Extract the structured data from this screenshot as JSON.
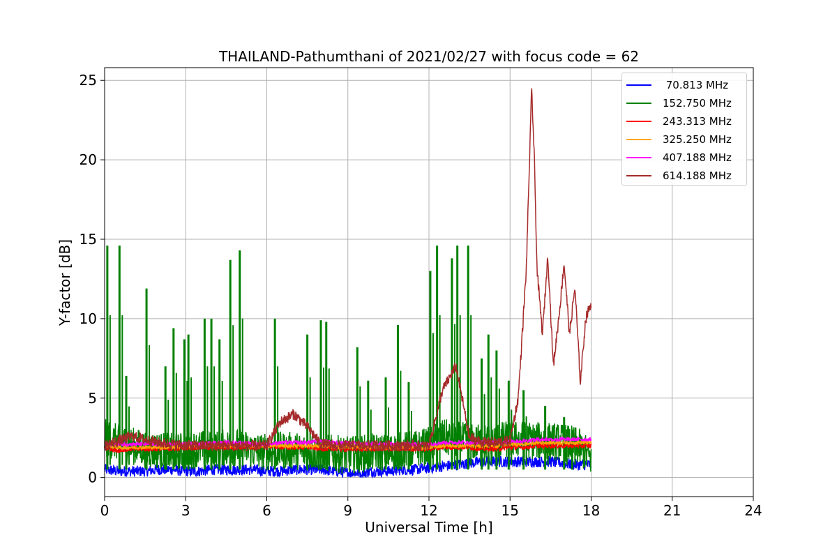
{
  "chart_data": {
    "type": "line",
    "title": "THAILAND-Pathumthani of 2021/02/27 with focus code = 62",
    "xlabel": "Universal Time [h]",
    "ylabel": "Y-factor [dB]",
    "xlim": [
      0,
      24
    ],
    "ylim": [
      -1.2,
      25.8
    ],
    "xticks": [
      0,
      3,
      6,
      9,
      12,
      15,
      18,
      21,
      24
    ],
    "yticks": [
      0,
      5,
      10,
      15,
      20,
      25
    ],
    "grid": true,
    "legend_position": "top-right",
    "series": [
      {
        "name": " 70.813 MHz",
        "color": "#0000ff",
        "x": [
          0,
          0.5,
          1,
          1.5,
          2,
          2.5,
          3,
          3.5,
          4,
          4.5,
          5,
          5.5,
          6,
          6.5,
          7,
          7.5,
          8,
          8.5,
          9,
          9.5,
          10,
          10.5,
          11,
          11.5,
          12,
          12.5,
          13,
          13.5,
          14,
          14.5,
          15,
          15.5,
          16,
          16.5,
          17,
          17.5,
          18
        ],
        "y": [
          0.5,
          0.4,
          0.4,
          0.4,
          0.5,
          0.5,
          0.4,
          0.4,
          0.5,
          0.5,
          0.5,
          0.5,
          0.4,
          0.4,
          0.5,
          0.5,
          0.5,
          0.4,
          0.3,
          0.3,
          0.4,
          0.4,
          0.5,
          0.5,
          0.6,
          0.7,
          0.8,
          0.9,
          1.0,
          1.0,
          1.0,
          1.0,
          1.0,
          1.0,
          0.9,
          0.8,
          0.8
        ]
      },
      {
        "name": "152.750 MHz",
        "color": "#008000",
        "x": [
          0,
          0.5,
          1,
          1.5,
          2,
          2.5,
          3,
          3.5,
          4,
          4.5,
          5,
          5.5,
          6,
          6.5,
          7,
          7.5,
          8,
          8.5,
          9,
          9.5,
          10,
          10.5,
          11,
          11.5,
          12,
          12.5,
          13,
          13.5,
          14,
          14.5,
          15,
          15.5,
          16,
          16.5,
          17,
          17.5,
          18
        ],
        "y": [
          2.5,
          2.2,
          2.0,
          1.8,
          1.7,
          1.6,
          1.7,
          1.8,
          1.8,
          1.9,
          1.9,
          1.7,
          1.6,
          1.7,
          1.7,
          1.6,
          1.6,
          1.5,
          1.4,
          1.5,
          1.6,
          1.6,
          1.7,
          1.8,
          2.0,
          2.5,
          2.4,
          2.2,
          2.2,
          2.3,
          2.4,
          2.4,
          2.3,
          2.3,
          2.2,
          2.0,
          1.2
        ],
        "peaks": [
          {
            "x": 0.1,
            "y": 14.6
          },
          {
            "x": 0.55,
            "y": 14.6
          },
          {
            "x": 0.8,
            "y": 6.4
          },
          {
            "x": 1.55,
            "y": 11.9
          },
          {
            "x": 2.25,
            "y": 7.0
          },
          {
            "x": 2.55,
            "y": 9.4
          },
          {
            "x": 2.95,
            "y": 8.7
          },
          {
            "x": 3.1,
            "y": 9.0
          },
          {
            "x": 3.7,
            "y": 10.0
          },
          {
            "x": 3.95,
            "y": 10.0
          },
          {
            "x": 4.25,
            "y": 8.7
          },
          {
            "x": 4.65,
            "y": 13.7
          },
          {
            "x": 5.0,
            "y": 14.3
          },
          {
            "x": 6.3,
            "y": 10.0
          },
          {
            "x": 7.5,
            "y": 9.0
          },
          {
            "x": 8.0,
            "y": 9.9
          },
          {
            "x": 8.2,
            "y": 9.8
          },
          {
            "x": 9.35,
            "y": 8.2
          },
          {
            "x": 9.75,
            "y": 6.1
          },
          {
            "x": 10.4,
            "y": 6.3
          },
          {
            "x": 10.85,
            "y": 9.6
          },
          {
            "x": 11.25,
            "y": 6.0
          },
          {
            "x": 12.05,
            "y": 13.0
          },
          {
            "x": 12.3,
            "y": 14.6
          },
          {
            "x": 12.85,
            "y": 13.8
          },
          {
            "x": 13.05,
            "y": 14.6
          },
          {
            "x": 13.45,
            "y": 14.6
          },
          {
            "x": 13.95,
            "y": 7.5
          },
          {
            "x": 14.2,
            "y": 9.0
          },
          {
            "x": 14.5,
            "y": 8.0
          },
          {
            "x": 14.95,
            "y": 6.1
          },
          {
            "x": 15.5,
            "y": 5.5
          },
          {
            "x": 16.3,
            "y": 4.5
          },
          {
            "x": 17.0,
            "y": 3.8
          },
          {
            "x": 17.3,
            "y": 3.0
          }
        ]
      },
      {
        "name": "243.313 MHz",
        "color": "#ff0000",
        "x": [
          0,
          0.5,
          1,
          1.5,
          2,
          2.5,
          3,
          3.5,
          4,
          4.5,
          5,
          5.5,
          6,
          6.5,
          7,
          7.5,
          8,
          8.5,
          9,
          9.5,
          10,
          10.5,
          11,
          11.5,
          12,
          12.5,
          13,
          13.5,
          14,
          14.5,
          15,
          15.5,
          16,
          16.5,
          17,
          17.5,
          18
        ],
        "y": [
          1.9,
          1.7,
          1.8,
          1.8,
          1.8,
          1.8,
          1.9,
          1.9,
          1.9,
          1.9,
          1.9,
          1.9,
          2.0,
          1.9,
          1.9,
          1.9,
          1.8,
          1.8,
          1.8,
          1.8,
          1.8,
          1.8,
          1.8,
          1.8,
          1.8,
          1.9,
          1.9,
          1.9,
          1.8,
          1.8,
          1.9,
          1.9,
          2.0,
          2.0,
          2.0,
          2.0,
          2.0
        ]
      },
      {
        "name": "325.250 MHz",
        "color": "#ffa500",
        "x": [
          0,
          0.5,
          1,
          1.5,
          2,
          2.5,
          3,
          3.5,
          4,
          4.5,
          5,
          5.5,
          6,
          6.5,
          7,
          7.5,
          8,
          8.5,
          9,
          9.5,
          10,
          10.5,
          11,
          11.5,
          12,
          12.5,
          13,
          13.5,
          14,
          14.5,
          15,
          15.5,
          16,
          16.5,
          17,
          17.5,
          18
        ],
        "y": [
          2.0,
          1.9,
          1.9,
          1.9,
          1.9,
          1.9,
          2.0,
          2.0,
          2.0,
          2.0,
          2.0,
          2.0,
          2.0,
          2.0,
          2.0,
          2.0,
          2.0,
          1.9,
          1.9,
          1.9,
          1.9,
          1.9,
          1.9,
          1.9,
          1.9,
          2.0,
          2.0,
          2.0,
          2.0,
          2.0,
          2.1,
          2.1,
          2.2,
          2.2,
          2.2,
          2.2,
          2.2
        ]
      },
      {
        "name": "407.188 MHz",
        "color": "#ff00ff",
        "x": [
          0,
          0.5,
          1,
          1.5,
          2,
          2.5,
          3,
          3.5,
          4,
          4.5,
          5,
          5.5,
          6,
          6.5,
          7,
          7.5,
          8,
          8.5,
          9,
          9.5,
          10,
          10.5,
          11,
          11.5,
          12,
          12.5,
          13,
          13.5,
          14,
          14.5,
          15,
          15.5,
          16,
          16.5,
          17,
          17.5,
          18
        ],
        "y": [
          2.1,
          2.1,
          2.1,
          2.1,
          2.1,
          2.1,
          2.1,
          2.1,
          2.2,
          2.2,
          2.2,
          2.1,
          2.1,
          2.2,
          2.2,
          2.2,
          2.3,
          2.2,
          2.2,
          2.1,
          2.1,
          2.1,
          2.1,
          2.1,
          2.1,
          2.2,
          2.2,
          2.2,
          2.2,
          2.2,
          2.3,
          2.3,
          2.4,
          2.4,
          2.4,
          2.4,
          2.4
        ]
      },
      {
        "name": "614.188 MHz",
        "color": "#a52a2a",
        "x": [
          0,
          0.5,
          1,
          1.5,
          2,
          2.5,
          3,
          3.5,
          4,
          4.5,
          5,
          5.5,
          6,
          6.5,
          7,
          7.5,
          8,
          8.5,
          9,
          9.5,
          10,
          10.5,
          11,
          11.5,
          12,
          12.5,
          13,
          13.5,
          14,
          14.5,
          15,
          15.3,
          15.6,
          15.8,
          15.9,
          16.0,
          16.2,
          16.4,
          16.6,
          16.8,
          17.0,
          17.2,
          17.4,
          17.6,
          17.8,
          18
        ],
        "y": [
          2.0,
          2.3,
          2.6,
          2.4,
          2.2,
          2.1,
          2.0,
          2.0,
          2.0,
          2.0,
          2.0,
          2.0,
          2.0,
          3.5,
          4.0,
          3.2,
          2.1,
          2.0,
          2.0,
          2.0,
          2.0,
          2.0,
          2.0,
          2.0,
          2.0,
          5.5,
          7.0,
          2.5,
          2.2,
          2.2,
          2.3,
          5.0,
          13.0,
          24.5,
          20.0,
          13.0,
          9.0,
          14.0,
          7.0,
          10.0,
          13.5,
          9.0,
          12.0,
          6.0,
          10.0,
          11.0
        ]
      }
    ]
  }
}
